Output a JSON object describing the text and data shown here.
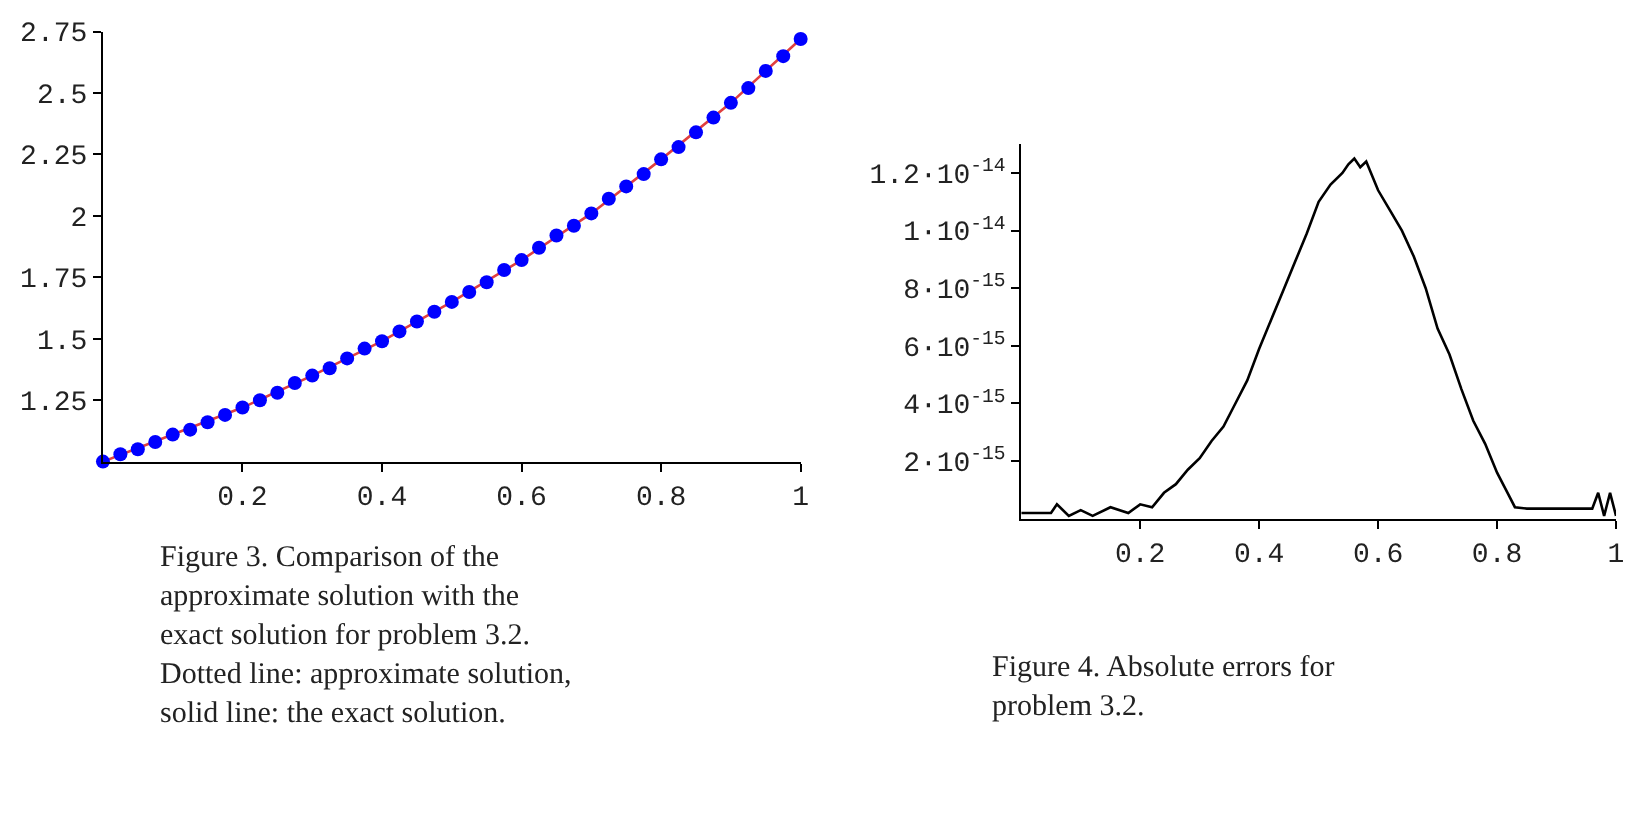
{
  "chart_data": [
    {
      "type": "scatter",
      "x": [
        0,
        0.025,
        0.05,
        0.075,
        0.1,
        0.125,
        0.15,
        0.175,
        0.2,
        0.225,
        0.25,
        0.275,
        0.3,
        0.325,
        0.35,
        0.375,
        0.4,
        0.425,
        0.45,
        0.475,
        0.5,
        0.525,
        0.55,
        0.575,
        0.6,
        0.625,
        0.65,
        0.675,
        0.7,
        0.725,
        0.75,
        0.775,
        0.8,
        0.825,
        0.85,
        0.875,
        0.9,
        0.925,
        0.95,
        0.975,
        1
      ],
      "series": [
        {
          "type": "line",
          "color": "#e04040",
          "line_style": "solid",
          "marker": "none",
          "x": [
            0,
            0.1,
            0.2,
            0.3,
            0.4,
            0.5,
            0.6,
            0.7,
            0.8,
            0.9,
            1
          ],
          "values": [
            1.0,
            1.11,
            1.22,
            1.35,
            1.49,
            1.65,
            1.82,
            2.01,
            2.23,
            2.46,
            2.72
          ]
        },
        {
          "type": "scatter",
          "color": "#0000ff",
          "marker": "circle",
          "values": [
            1.0,
            1.03,
            1.05,
            1.08,
            1.11,
            1.13,
            1.16,
            1.19,
            1.22,
            1.25,
            1.28,
            1.32,
            1.35,
            1.38,
            1.42,
            1.46,
            1.49,
            1.53,
            1.57,
            1.61,
            1.65,
            1.69,
            1.73,
            1.78,
            1.82,
            1.87,
            1.92,
            1.96,
            2.01,
            2.07,
            2.12,
            2.17,
            2.23,
            2.28,
            2.34,
            2.4,
            2.46,
            2.52,
            2.59,
            2.65,
            2.72
          ]
        }
      ],
      "xlim": [
        0,
        1
      ],
      "ylim": [
        1,
        2.75
      ],
      "xticks": [
        0.2,
        0.4,
        0.6,
        0.8,
        1
      ],
      "yticks": [
        1.25,
        1.5,
        1.75,
        2,
        2.25,
        2.5,
        2.75
      ],
      "annotations": [
        "Figure 3. Comparison of the approximate solution with the exact solution for problem 3.2. Dotted line: approximate solution, solid line: the exact solution."
      ]
    },
    {
      "type": "line",
      "x": [
        0,
        0.05,
        0.06,
        0.08,
        0.1,
        0.12,
        0.15,
        0.18,
        0.2,
        0.22,
        0.24,
        0.26,
        0.28,
        0.3,
        0.32,
        0.34,
        0.36,
        0.38,
        0.4,
        0.42,
        0.44,
        0.46,
        0.48,
        0.5,
        0.52,
        0.54,
        0.55,
        0.56,
        0.57,
        0.58,
        0.6,
        0.62,
        0.64,
        0.66,
        0.68,
        0.7,
        0.72,
        0.74,
        0.76,
        0.78,
        0.8,
        0.82,
        0.83,
        0.85,
        0.9,
        0.96,
        0.97,
        0.98,
        0.99,
        1.0
      ],
      "series": [
        {
          "color": "#000000",
          "line_style": "solid",
          "marker": "none",
          "values": [
            2e-16,
            2e-16,
            5e-16,
            1e-16,
            3e-16,
            1e-16,
            4e-16,
            2e-16,
            5e-16,
            4e-16,
            9e-16,
            1.2e-15,
            1.7e-15,
            2.1e-15,
            2.7e-15,
            3.2e-15,
            4e-15,
            4.8e-15,
            5.9e-15,
            6.9e-15,
            7.9e-15,
            8.9e-15,
            9.9e-15,
            1.1e-14,
            1.16e-14,
            1.2e-14,
            1.23e-14,
            1.25e-14,
            1.22e-14,
            1.24e-14,
            1.14e-14,
            1.07e-14,
            1e-14,
            9.1e-15,
            8e-15,
            6.6e-15,
            5.7e-15,
            4.5e-15,
            3.4e-15,
            2.6e-15,
            1.6e-15,
            8e-16,
            4e-16,
            3.5e-16,
            3.5e-16,
            3.5e-16,
            9e-16,
            1e-16,
            9e-16,
            1e-16
          ]
        }
      ],
      "xlim": [
        0,
        1
      ],
      "ylim": [
        0,
        1.3e-14
      ],
      "xticks": [
        0.2,
        0.4,
        0.6,
        0.8,
        1
      ],
      "yticks": [
        {
          "value": 2e-15,
          "label": "2·10$^{-15}$"
        },
        {
          "value": 4e-15,
          "label": "4·10$^{-15}$"
        },
        {
          "value": 6e-15,
          "label": "6·10$^{-15}$"
        },
        {
          "value": 8e-15,
          "label": "8·10$^{-15}$"
        },
        {
          "value": 1e-14,
          "label": "1·10$^{-14}$"
        },
        {
          "value": 1.2e-14,
          "label": "1.2·10$^{-14}$"
        }
      ],
      "annotations": [
        "Figure 4. Absolute errors for problem 3.2."
      ]
    }
  ]
}
